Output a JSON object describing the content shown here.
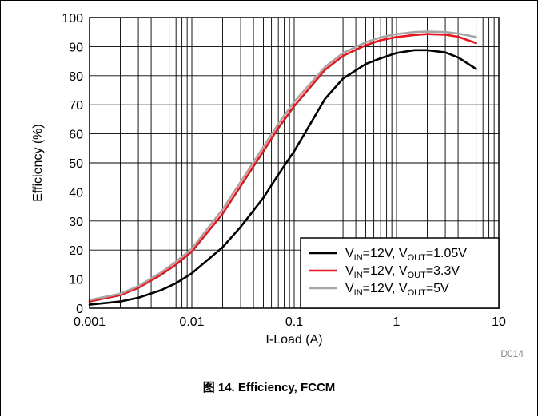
{
  "figure_caption": "图 14. Efficiency, FCCM",
  "figure_code": "D014",
  "chart_data": {
    "type": "line",
    "xlabel": "I-Load (A)",
    "ylabel": "Efficiency (%)",
    "x_scale": "log",
    "xlim": [
      0.001,
      10
    ],
    "ylim": [
      0,
      100
    ],
    "x_ticks": [
      0.001,
      0.01,
      0.1,
      1,
      10
    ],
    "x_tick_labels": [
      "0.001",
      "0.01",
      "0.1",
      "1",
      "10"
    ],
    "y_ticks": [
      0,
      10,
      20,
      30,
      40,
      50,
      60,
      70,
      80,
      90,
      100
    ],
    "y_tick_labels": [
      "0",
      "10",
      "20",
      "30",
      "40",
      "50",
      "60",
      "70",
      "80",
      "90",
      "100"
    ],
    "grid": true,
    "legend_position": "bottom-right",
    "series": [
      {
        "name": "VIN=12V, VOUT=1.05V",
        "legend": {
          "vin_main": "V",
          "vin_sub": "IN",
          "mid": "=12V, V",
          "vout_sub": "OUT",
          "tail": "=1.05V"
        },
        "color": "#000000",
        "x": [
          0.001,
          0.002,
          0.003,
          0.005,
          0.007,
          0.01,
          0.02,
          0.03,
          0.05,
          0.07,
          0.1,
          0.2,
          0.3,
          0.5,
          0.7,
          1,
          1.5,
          2,
          3,
          4,
          6
        ],
        "y": [
          1.2,
          2.3,
          3.6,
          6.2,
          8.6,
          12,
          21,
          28,
          38,
          46,
          54,
          72,
          79,
          84,
          86,
          87.8,
          88.8,
          88.8,
          88,
          86.3,
          82.3
        ]
      },
      {
        "name": "VIN=12V, VOUT=3.3V",
        "legend": {
          "vin_main": "V",
          "vin_sub": "IN",
          "mid": "=12V, V",
          "vout_sub": "OUT",
          "tail": "=3.3V"
        },
        "color": "#e8141e",
        "x": [
          0.001,
          0.002,
          0.003,
          0.005,
          0.007,
          0.01,
          0.02,
          0.03,
          0.05,
          0.07,
          0.1,
          0.2,
          0.3,
          0.5,
          0.7,
          1,
          1.5,
          2,
          3,
          4,
          6
        ],
        "y": [
          2.3,
          4.5,
          7,
          11.5,
          15,
          19.5,
          32.5,
          42,
          54,
          62,
          69.5,
          82,
          86.8,
          90.5,
          92.2,
          93.3,
          94,
          94.3,
          94.1,
          93.4,
          91.2
        ]
      },
      {
        "name": "VIN=12V, VOUT=5V",
        "legend": {
          "vin_main": "V",
          "vin_sub": "IN",
          "mid": "=12V, V",
          "vout_sub": "OUT",
          "tail": "=5V"
        },
        "color": "#a6a6a6",
        "x": [
          0.001,
          0.002,
          0.003,
          0.005,
          0.007,
          0.01,
          0.02,
          0.03,
          0.05,
          0.07,
          0.1,
          0.2,
          0.3,
          0.5,
          0.7,
          1,
          1.5,
          2,
          3,
          4,
          6
        ],
        "y": [
          2.8,
          5,
          7.6,
          12.3,
          16,
          20.5,
          34,
          43.5,
          55.5,
          63.5,
          71,
          83,
          87.8,
          91.5,
          93.2,
          94.3,
          95,
          95.2,
          95,
          94.5,
          93.3
        ]
      }
    ]
  }
}
